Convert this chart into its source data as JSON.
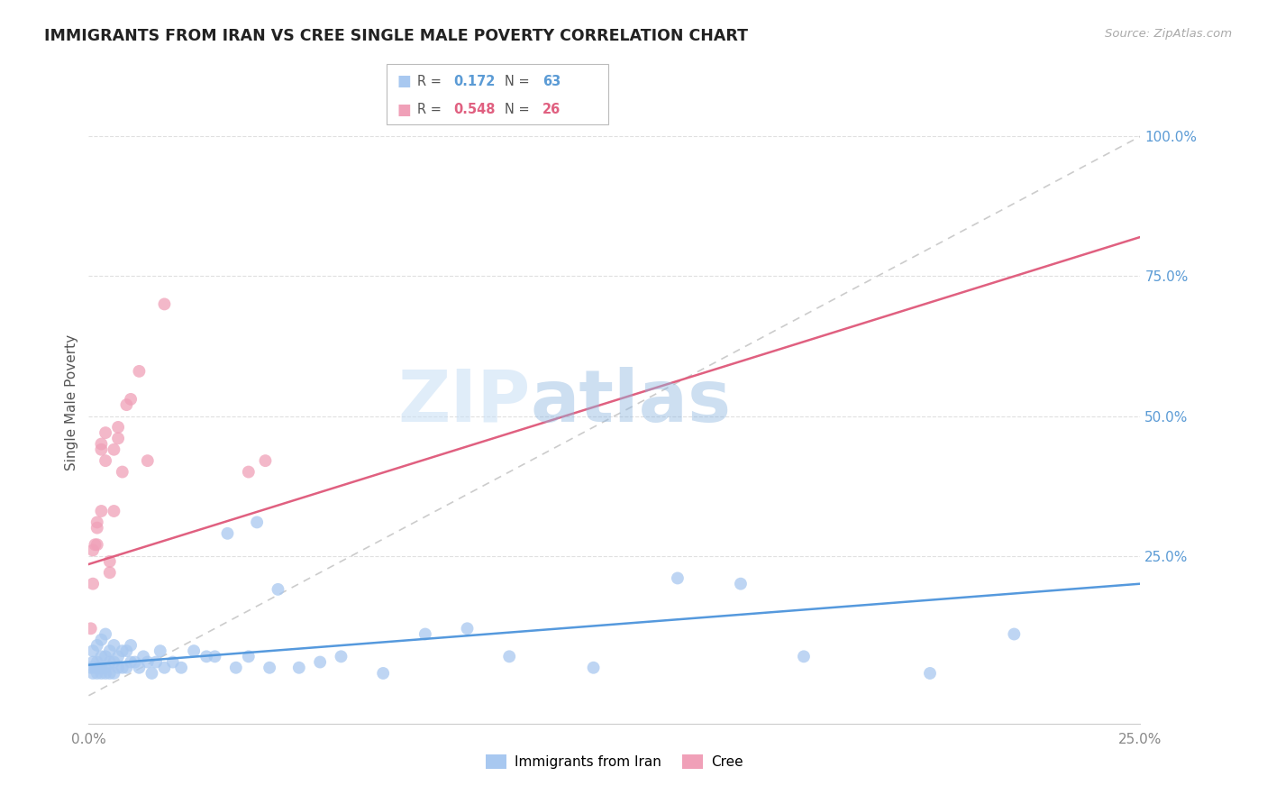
{
  "title": "IMMIGRANTS FROM IRAN VS CREE SINGLE MALE POVERTY CORRELATION CHART",
  "source": "Source: ZipAtlas.com",
  "ylabel": "Single Male Poverty",
  "right_yticks": [
    "100.0%",
    "75.0%",
    "50.0%",
    "25.0%"
  ],
  "right_ytick_vals": [
    1.0,
    0.75,
    0.5,
    0.25
  ],
  "xlim": [
    0.0,
    0.25
  ],
  "ylim": [
    -0.05,
    1.1
  ],
  "legend_iran_r": "0.172",
  "legend_iran_n": "63",
  "legend_cree_r": "0.548",
  "legend_cree_n": "26",
  "iran_color": "#a8c8f0",
  "cree_color": "#f0a0b8",
  "iran_line_color": "#5599dd",
  "cree_line_color": "#e06080",
  "diagonal_color": "#cccccc",
  "watermark_zip": "ZIP",
  "watermark_atlas": "atlas",
  "iran_x": [
    0.0005,
    0.001,
    0.001,
    0.001,
    0.0015,
    0.002,
    0.002,
    0.002,
    0.0025,
    0.003,
    0.003,
    0.003,
    0.003,
    0.004,
    0.004,
    0.004,
    0.004,
    0.005,
    0.005,
    0.005,
    0.006,
    0.006,
    0.006,
    0.007,
    0.007,
    0.008,
    0.008,
    0.009,
    0.009,
    0.01,
    0.01,
    0.011,
    0.012,
    0.013,
    0.014,
    0.015,
    0.016,
    0.017,
    0.018,
    0.02,
    0.022,
    0.025,
    0.028,
    0.03,
    0.033,
    0.035,
    0.038,
    0.04,
    0.043,
    0.045,
    0.05,
    0.055,
    0.06,
    0.07,
    0.08,
    0.09,
    0.1,
    0.12,
    0.14,
    0.155,
    0.17,
    0.2,
    0.22
  ],
  "iran_y": [
    0.05,
    0.04,
    0.06,
    0.08,
    0.05,
    0.04,
    0.06,
    0.09,
    0.05,
    0.04,
    0.05,
    0.07,
    0.1,
    0.04,
    0.05,
    0.07,
    0.11,
    0.04,
    0.06,
    0.08,
    0.04,
    0.06,
    0.09,
    0.05,
    0.07,
    0.05,
    0.08,
    0.05,
    0.08,
    0.06,
    0.09,
    0.06,
    0.05,
    0.07,
    0.06,
    0.04,
    0.06,
    0.08,
    0.05,
    0.06,
    0.05,
    0.08,
    0.07,
    0.07,
    0.29,
    0.05,
    0.07,
    0.31,
    0.05,
    0.19,
    0.05,
    0.06,
    0.07,
    0.04,
    0.11,
    0.12,
    0.07,
    0.05,
    0.21,
    0.2,
    0.07,
    0.04,
    0.11
  ],
  "cree_x": [
    0.0005,
    0.001,
    0.001,
    0.0015,
    0.002,
    0.002,
    0.002,
    0.003,
    0.003,
    0.003,
    0.004,
    0.004,
    0.005,
    0.005,
    0.006,
    0.006,
    0.007,
    0.007,
    0.008,
    0.009,
    0.01,
    0.012,
    0.014,
    0.018,
    0.038,
    0.042
  ],
  "cree_y": [
    0.12,
    0.2,
    0.26,
    0.27,
    0.27,
    0.31,
    0.3,
    0.33,
    0.44,
    0.45,
    0.42,
    0.47,
    0.22,
    0.24,
    0.33,
    0.44,
    0.46,
    0.48,
    0.4,
    0.52,
    0.53,
    0.58,
    0.42,
    0.7,
    0.4,
    0.42
  ],
  "iran_line": [
    0.0,
    0.25,
    0.055,
    0.2
  ],
  "cree_line": [
    0.0,
    0.25,
    0.235,
    0.82
  ]
}
